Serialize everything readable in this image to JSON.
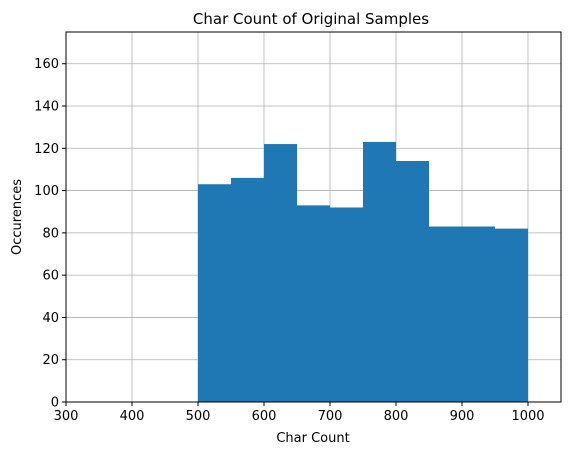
{
  "chart_data": {
    "type": "bar",
    "title": "Char Count of Original Samples",
    "xlabel": "Char Count",
    "ylabel": "Occurences",
    "bins": [
      {
        "start": 500,
        "end": 550,
        "value": 103
      },
      {
        "start": 550,
        "end": 600,
        "value": 106
      },
      {
        "start": 600,
        "end": 650,
        "value": 122
      },
      {
        "start": 650,
        "end": 700,
        "value": 93
      },
      {
        "start": 700,
        "end": 750,
        "value": 92
      },
      {
        "start": 750,
        "end": 800,
        "value": 123
      },
      {
        "start": 800,
        "end": 850,
        "value": 114
      },
      {
        "start": 850,
        "end": 900,
        "value": 83
      },
      {
        "start": 900,
        "end": 950,
        "value": 83
      },
      {
        "start": 950,
        "end": 1000,
        "value": 82
      }
    ],
    "xlim": [
      300,
      1050
    ],
    "ylim": [
      0,
      175
    ],
    "xticks": [
      "300",
      "400",
      "500",
      "600",
      "700",
      "800",
      "900",
      "1000"
    ],
    "yticks": [
      "0",
      "20",
      "40",
      "60",
      "80",
      "100",
      "120",
      "140",
      "160"
    ],
    "grid": true,
    "bar_color": "#1f77b4"
  }
}
